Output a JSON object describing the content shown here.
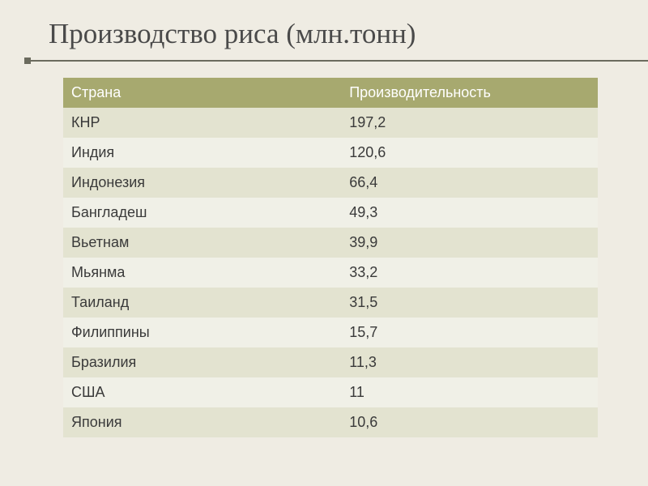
{
  "title": "Производство риса (млн.тонн)",
  "table": {
    "columns": [
      "Страна",
      "Производительность"
    ],
    "rows": [
      [
        "КНР",
        "197,2"
      ],
      [
        "Индия",
        "120,6"
      ],
      [
        "Индонезия",
        "66,4"
      ],
      [
        "Бангладеш",
        "49,3"
      ],
      [
        "Вьетнам",
        "39,9"
      ],
      [
        "Мьянма",
        "33,2"
      ],
      [
        "Таиланд",
        "31,5"
      ],
      [
        "Филиппины",
        "15,7"
      ],
      [
        "Бразилия",
        "11,3"
      ],
      [
        "США",
        "11"
      ],
      [
        "Япония",
        "10,6"
      ]
    ],
    "header_bg": "#a7a96f",
    "header_text_color": "#ffffff",
    "row_odd_bg": "#e3e3d0",
    "row_even_bg": "#f0f0e7",
    "text_color": "#3a3a3a",
    "font_size": 18,
    "col_widths": [
      "52%",
      "48%"
    ]
  },
  "slide_bg": "#efece3",
  "title_color": "#4a4a4a",
  "title_fontsize": 35,
  "rule_color": "#6b6b5e"
}
